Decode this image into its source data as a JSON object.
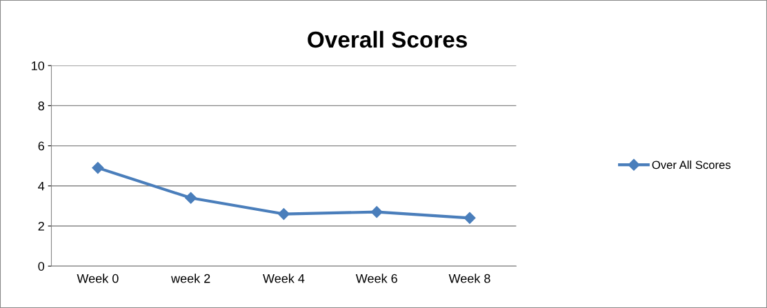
{
  "chart_data": {
    "type": "line",
    "title": "Overall Scores",
    "categories": [
      "Week 0",
      "week 2",
      "Week 4",
      "Week 6",
      "Week 8"
    ],
    "series": [
      {
        "name": "Over All Scores",
        "color": "#4a7ebb",
        "values": [
          4.9,
          3.4,
          2.6,
          2.7,
          2.4
        ]
      }
    ],
    "ylim": [
      0,
      10
    ],
    "yticks": [
      0,
      2,
      4,
      6,
      8,
      10
    ],
    "grid": "y",
    "legend": "right",
    "marker": "diamond",
    "line_style": "solid"
  }
}
